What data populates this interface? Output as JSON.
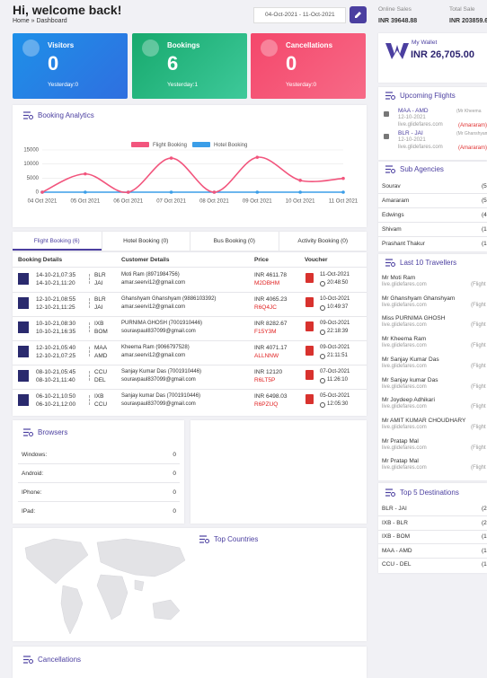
{
  "header": {
    "title": "Hi, welcome back!",
    "breadcrumb": "Home » Dashboard",
    "date_range": "04-Oct-2021 - 11-Oct-2021",
    "online_sales": {
      "label": "Online Sales",
      "value": "INR 39648.88"
    },
    "total_sales": {
      "label": "Total Sale",
      "value": "INR 203859.6"
    }
  },
  "stat_cards": [
    {
      "title": "Visitors",
      "value": 0,
      "sub": "Yesterday:0"
    },
    {
      "title": "Bookings",
      "value": 6,
      "sub": "Yesterday:1"
    },
    {
      "title": "Cancellations",
      "value": 0,
      "sub": "Yesterday:0"
    }
  ],
  "wallet": {
    "label": "My Wallet",
    "value": "INR 26,705.00"
  },
  "chart_data": {
    "type": "line",
    "title": "Booking Analytics",
    "categories": [
      "04 Oct 2021",
      "05 Oct 2021",
      "06 Oct 2021",
      "07 Oct 2021",
      "08 Oct 2021",
      "09 Oct 2021",
      "10 Oct 2021",
      "11 Oct 2021"
    ],
    "series": [
      {
        "name": "Flight Booking",
        "color": "#f2557d",
        "values": [
          0,
          6500,
          0,
          12100,
          0,
          12400,
          4200,
          4900
        ]
      },
      {
        "name": "Hotel Booking",
        "color": "#3b9ee8",
        "values": [
          0,
          0,
          0,
          0,
          0,
          0,
          0,
          0
        ]
      }
    ],
    "ylim": [
      0,
      15000
    ],
    "yticks": [
      0,
      5000,
      10000,
      15000
    ],
    "grid": true
  },
  "tabs": [
    "Flight Booking (6)",
    "Hotel Booking (0)",
    "Bus Booking (0)",
    "Activity Booking (0)"
  ],
  "table": {
    "headers": [
      "Booking Details",
      "Customer Details",
      "Price",
      "Voucher"
    ],
    "rows": [
      [
        "14-10-21,07:35",
        "14-10-21,11:20",
        "BLR",
        "JAI",
        "Moti Ram (8971984756)",
        "amar.seervi12@gmail.com",
        "INR 4611.78",
        "M2DBHM",
        "11-Oct-2021",
        "20:48:50"
      ],
      [
        "12-10-21,08:55",
        "12-10-21,11:25",
        "BLR",
        "JAI",
        "Ghanshyam Ghanshyam (9886103392)",
        "amar.seervi12@gmail.com",
        "INR 4065.23",
        "R6Q4JC",
        "10-Oct-2021",
        "10:49:37"
      ],
      [
        "10-10-21,08:30",
        "10-10-21,16:35",
        "IXB",
        "BOM",
        "PURNIMA GHOSH (7001910446)",
        "souravpaul837099@gmail.com",
        "INR 8282.67",
        "F15Y3M",
        "09-Oct-2021",
        "22:18:39"
      ],
      [
        "12-10-21,05:40",
        "12-10-21,07:25",
        "MAA",
        "AMD",
        "Kheema Ram (9066797528)",
        "amar.seervi12@gmail.com",
        "INR 4071.17",
        "ALLNNW",
        "09-Oct-2021",
        "21:11:51"
      ],
      [
        "08-10-21,05:45",
        "08-10-21,11:40",
        "CCU",
        "DEL",
        "Sanjay Kumar Das (7001910446)",
        "souravpaul837099@gmail.com",
        "INR 12120",
        "R6LT5P",
        "07-Oct-2021",
        "11:26:10"
      ],
      [
        "06-10-21,10:50",
        "06-10-21,12:00",
        "IXB",
        "CCU",
        "Sanjay kumar Das (7001910446)",
        "souravpaul837099@gmail.com",
        "INR 6498.03",
        "R6PZUQ",
        "05-Oct-2021",
        "12:05:30"
      ]
    ]
  },
  "browsers": {
    "title": "Browsers",
    "rows": [
      [
        "Windows:",
        0
      ],
      [
        "Android:",
        0
      ],
      [
        "IPhone:",
        0
      ],
      [
        "IPad:",
        0
      ]
    ]
  },
  "top_countries": {
    "title": "Top Countries"
  },
  "cancellations": {
    "title": "Cancellations"
  },
  "upcoming_flights": {
    "title": "Upcoming Flights",
    "items": [
      {
        "route": "MAA - AMD",
        "date": "12-10-2021",
        "site": "live.glidefares.com",
        "passenger": "(Mr Kheema",
        "agent": "(Amararam)"
      },
      {
        "route": "BLR - JAI",
        "date": "12-10-2021",
        "site": "live.glidefares.com",
        "passenger": "(Mr Ghanshyam",
        "agent": "(Amararam)"
      }
    ]
  },
  "sub_agencies": {
    "title": "Sub Agencies",
    "rows": [
      [
        "Sourav",
        "(5"
      ],
      [
        "Amararam",
        "(5"
      ],
      [
        "Edwings",
        "(4"
      ],
      [
        "Shivam",
        "(1"
      ],
      [
        "Prashant Thakur",
        "(1"
      ]
    ]
  },
  "travellers": {
    "title": "Last 10 Travellers",
    "items": [
      [
        "Mr Moti Ram",
        "live.glidefares.com",
        "(Flight"
      ],
      [
        "Mr Ghanshyam Ghanshyam",
        "live.glidefares.com",
        "(Flight"
      ],
      [
        "Miss PURNIMA GHOSH",
        "live.glidefares.com",
        "(Flight"
      ],
      [
        "Mr Kheema Ram",
        "live.glidefares.com",
        "(Flight"
      ],
      [
        "Mr Sanjay Kumar Das",
        "live.glidefares.com",
        "(Flight"
      ],
      [
        "Mr Sanjay kumar Das",
        "live.glidefares.com",
        "(Flight"
      ],
      [
        "Mr Joydeep Adhikari",
        "live.glidefares.com",
        "(Flight"
      ],
      [
        "Mr AMIT KUMAR CHOUDHARY",
        "live.glidefares.com",
        "(Flight"
      ],
      [
        "Mr Pratap Mal",
        "live.glidefares.com",
        "(Flight"
      ],
      [
        "Mr Pratap Mal",
        "live.glidefares.com",
        "(Flight"
      ]
    ]
  },
  "top_destinations": {
    "title": "Top 5 Destinations",
    "rows": [
      [
        "BLR - JAI",
        "(2"
      ],
      [
        "IXB - BLR",
        "(2"
      ],
      [
        "IXB - BOM",
        "(1"
      ],
      [
        "MAA - AMD",
        "(1"
      ],
      [
        "CCU - DEL",
        "(1"
      ]
    ]
  }
}
